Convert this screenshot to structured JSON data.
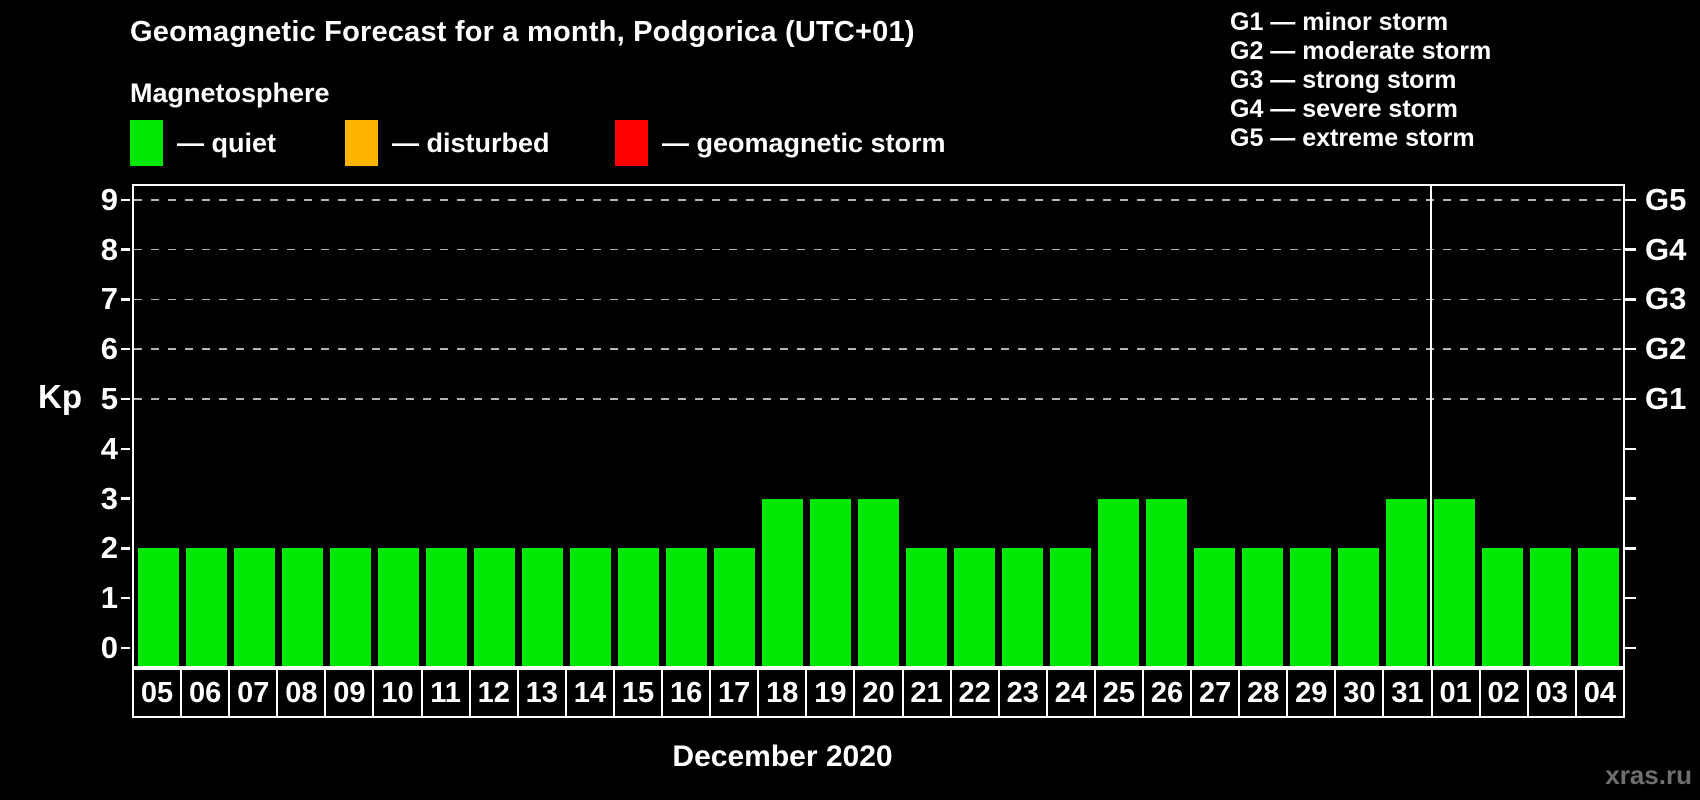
{
  "header": {
    "title": "Geomagnetic Forecast for a month, Podgorica (UTC+01)",
    "subtitle": "Magnetosphere"
  },
  "condition_legend": [
    {
      "name": "quiet",
      "label": "— quiet",
      "color": "#00e800"
    },
    {
      "name": "disturbed",
      "label": "— disturbed",
      "color": "#ffb400"
    },
    {
      "name": "geomagnetic-storm",
      "label": "— geomagnetic storm",
      "color": "#ff0000"
    }
  ],
  "storm_scale_legend": [
    "G1 — minor storm",
    "G2 — moderate storm",
    "G3 — strong storm",
    "G4 — severe storm",
    "G5 — extreme storm"
  ],
  "chart_data": {
    "type": "bar",
    "categories": [
      "05",
      "06",
      "07",
      "08",
      "09",
      "10",
      "11",
      "12",
      "13",
      "14",
      "15",
      "16",
      "17",
      "18",
      "19",
      "20",
      "21",
      "22",
      "23",
      "24",
      "25",
      "26",
      "27",
      "28",
      "29",
      "30",
      "31",
      "01",
      "02",
      "03",
      "04"
    ],
    "values": [
      2,
      2,
      2,
      2,
      2,
      2,
      2,
      2,
      2,
      2,
      2,
      2,
      2,
      3,
      3,
      3,
      2,
      2,
      2,
      2,
      3,
      3,
      2,
      2,
      2,
      2,
      3,
      3,
      2,
      2,
      2
    ],
    "bar_color": "#00e800",
    "ylabel": "Kp",
    "xlabel": "December 2020",
    "yticks": [
      0,
      1,
      2,
      3,
      4,
      5,
      6,
      7,
      8,
      9
    ],
    "ylim": [
      0,
      9.36
    ],
    "grid": "horizontal dashed lines at Kp 5-9",
    "gridlines_at": [
      5,
      6,
      7,
      8,
      9
    ],
    "right_axis": [
      {
        "label": "G1",
        "kp": 5
      },
      {
        "label": "G2",
        "kp": 6
      },
      {
        "label": "G3",
        "kp": 7
      },
      {
        "label": "G4",
        "kp": 8
      },
      {
        "label": "G5",
        "kp": 9
      }
    ],
    "month_separator_after_category": "31",
    "legend_position": "top-left"
  },
  "watermark": "xras.ru",
  "colors": {
    "background": "#000000",
    "text": "#ffffff",
    "gridline": "#b4b4b4",
    "watermark_text": "#6f6f6f"
  }
}
